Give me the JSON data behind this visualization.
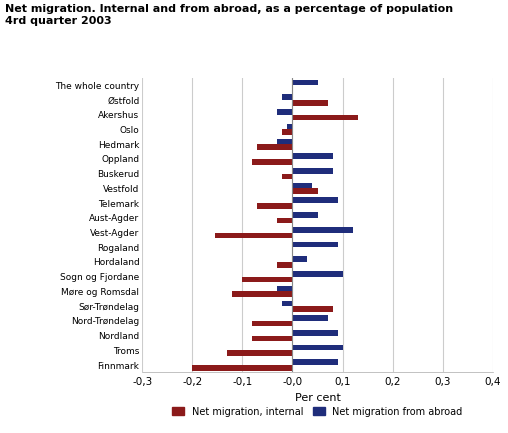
{
  "title": "Net migration. Internal and from abroad, as a percentage of population\n4rd quarter 2003",
  "categories": [
    "The whole country",
    "Østfold",
    "Akershus",
    "Oslo",
    "Hedmark",
    "Oppland",
    "Buskerud",
    "Vestfold",
    "Telemark",
    "Aust-Agder",
    "Vest-Agder",
    "Rogaland",
    "Hordaland",
    "Sogn og Fjordane",
    "Møre og Romsdal",
    "Sør-Trøndelag",
    "Nord-Trøndelag",
    "Nordland",
    "Troms",
    "Finnmark"
  ],
  "internal": [
    0.0,
    0.07,
    0.13,
    -0.02,
    -0.07,
    -0.08,
    -0.02,
    0.05,
    -0.07,
    -0.03,
    -0.155,
    0.0,
    -0.03,
    -0.1,
    -0.12,
    0.08,
    -0.08,
    -0.08,
    -0.13,
    -0.2
  ],
  "abroad": [
    0.05,
    -0.02,
    -0.03,
    -0.01,
    -0.03,
    0.08,
    0.08,
    0.04,
    0.09,
    0.05,
    0.12,
    0.09,
    0.03,
    0.1,
    -0.03,
    -0.02,
    0.07,
    0.09,
    0.1,
    0.09
  ],
  "color_internal": "#8b1a1a",
  "color_abroad": "#1f2d7b",
  "xlabel": "Per cent",
  "xlim": [
    -0.3,
    0.4
  ],
  "xticks": [
    -0.3,
    -0.2,
    -0.1,
    0.0,
    0.1,
    0.2,
    0.3,
    0.4
  ],
  "xtick_labels": [
    "-0,3",
    "-0,2",
    "-0,1",
    "-0,0",
    "0,1",
    "0,2",
    "0,3",
    "0,4"
  ],
  "legend_internal": "Net migration, internal",
  "legend_abroad": "Net migration from abroad",
  "background_color": "#ffffff",
  "grid_color": "#cccccc"
}
